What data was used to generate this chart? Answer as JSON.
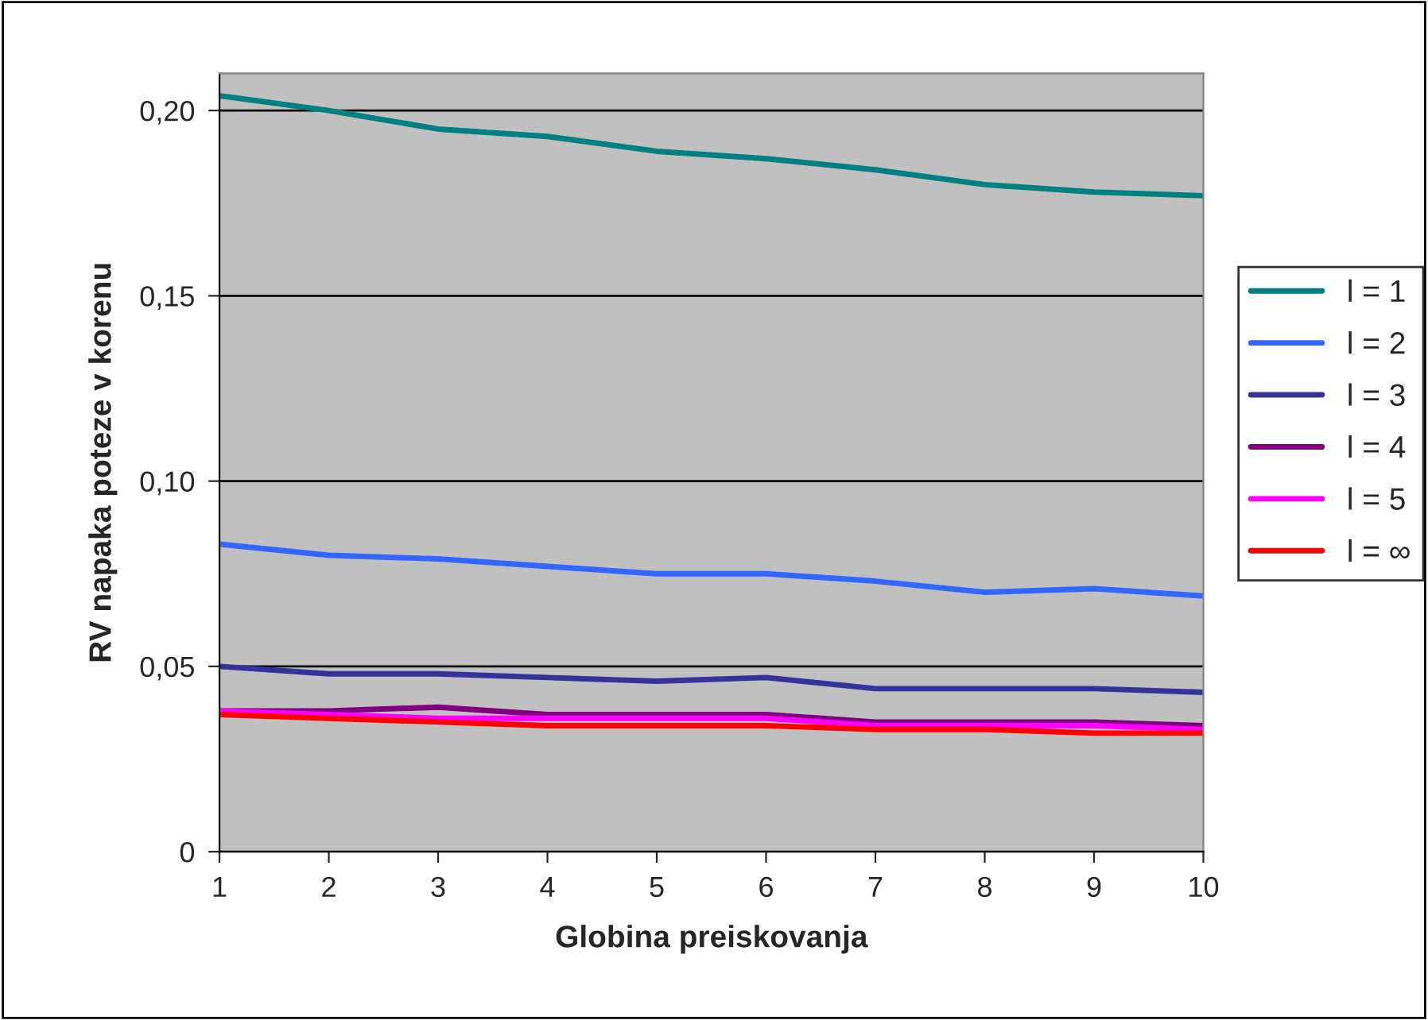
{
  "chart_data": {
    "type": "line",
    "xlabel": "Globina preiskovanja",
    "ylabel": "RV napaka poteze v korenu",
    "x": [
      1,
      2,
      3,
      4,
      5,
      6,
      7,
      8,
      9,
      10
    ],
    "series": [
      {
        "name": "l = 1",
        "color": "#008080",
        "values": [
          0.204,
          0.2,
          0.195,
          0.193,
          0.189,
          0.187,
          0.184,
          0.18,
          0.178,
          0.177
        ]
      },
      {
        "name": "l = 2",
        "color": "#3366ff",
        "values": [
          0.083,
          0.08,
          0.079,
          0.077,
          0.075,
          0.075,
          0.073,
          0.07,
          0.071,
          0.069
        ]
      },
      {
        "name": "l = 3",
        "color": "#333399",
        "values": [
          0.05,
          0.048,
          0.048,
          0.047,
          0.046,
          0.047,
          0.044,
          0.044,
          0.044,
          0.043
        ]
      },
      {
        "name": "l = 4",
        "color": "#800080",
        "values": [
          0.038,
          0.038,
          0.039,
          0.037,
          0.037,
          0.037,
          0.035,
          0.035,
          0.035,
          0.034
        ]
      },
      {
        "name": "l = 5",
        "color": "#ff00ff",
        "values": [
          0.038,
          0.037,
          0.036,
          0.036,
          0.036,
          0.036,
          0.034,
          0.034,
          0.034,
          0.033
        ]
      },
      {
        "name": "l = ∞",
        "color": "#ff0000",
        "values": [
          0.037,
          0.036,
          0.035,
          0.034,
          0.034,
          0.034,
          0.033,
          0.033,
          0.032,
          0.032
        ]
      }
    ],
    "xlim": [
      1,
      10
    ],
    "xticks": [
      1,
      2,
      3,
      4,
      5,
      6,
      7,
      8,
      9,
      10
    ],
    "ylim": [
      0,
      0.21
    ],
    "yticks": [
      {
        "value": 0,
        "label": "0"
      },
      {
        "value": 0.05,
        "label": "0,05"
      },
      {
        "value": 0.1,
        "label": "0,10"
      },
      {
        "value": 0.15,
        "label": "0,15"
      },
      {
        "value": 0.2,
        "label": "0,20"
      }
    ],
    "grid": "y",
    "legend": "right",
    "marker": "none",
    "line_style": "solid"
  }
}
